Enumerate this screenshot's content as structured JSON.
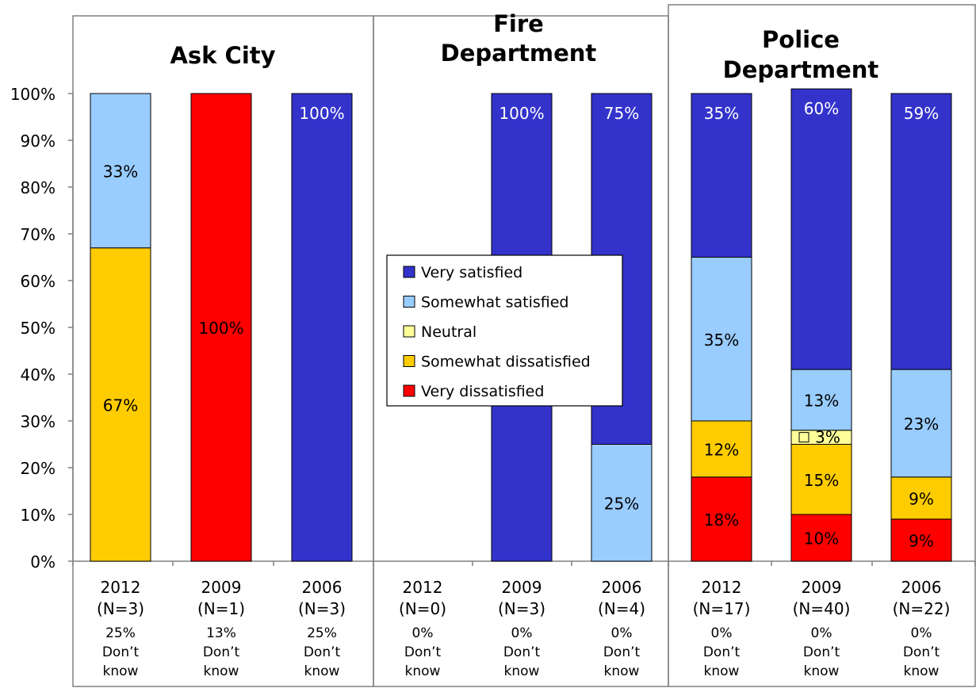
{
  "chart_data": {
    "type": "bar",
    "stacked": true,
    "ylim": [
      0,
      100
    ],
    "y_ticks": [
      "0%",
      "10%",
      "20%",
      "30%",
      "40%",
      "50%",
      "60%",
      "70%",
      "80%",
      "90%",
      "100%"
    ],
    "grid": false,
    "legend_placement": "center",
    "groups": [
      {
        "title_lines": [
          "Ask City"
        ]
      },
      {
        "title_lines": [
          "Fire",
          "Department"
        ]
      },
      {
        "title_lines": [
          "Police",
          "Department"
        ]
      }
    ],
    "series_order": [
      "very_dissatisfied",
      "somewhat_dissatisfied",
      "neutral",
      "somewhat_satisfied",
      "very_satisfied"
    ],
    "legend": [
      {
        "key": "very_satisfied",
        "label": "Very satisfied",
        "color": "#3333cc"
      },
      {
        "key": "somewhat_satisfied",
        "label": "Somewhat satisfied",
        "color": "#99ccff"
      },
      {
        "key": "neutral",
        "label": "Neutral",
        "color": "#ffff99"
      },
      {
        "key": "somewhat_dissatisfied",
        "label": "Somewhat dissatisfied",
        "color": "#ffcc00"
      },
      {
        "key": "very_dissatisfied",
        "label": "Very dissatisfied",
        "color": "#ff0000"
      }
    ],
    "bars": [
      {
        "group": 0,
        "year": "2012",
        "n": "(N=3)",
        "dk": "25%",
        "dk_label": [
          "Don’t",
          "know"
        ],
        "values": {
          "very_dissatisfied": 0,
          "somewhat_dissatisfied": 67,
          "neutral": 0,
          "somewhat_satisfied": 33,
          "very_satisfied": 0
        },
        "labels": {
          "somewhat_dissatisfied": "67%",
          "somewhat_satisfied": "33%"
        }
      },
      {
        "group": 0,
        "year": "2009",
        "n": "(N=1)",
        "dk": "13%",
        "dk_label": [
          "Don’t",
          "know"
        ],
        "values": {
          "very_dissatisfied": 100,
          "somewhat_dissatisfied": 0,
          "neutral": 0,
          "somewhat_satisfied": 0,
          "very_satisfied": 0
        },
        "labels": {
          "very_dissatisfied": "100%"
        }
      },
      {
        "group": 0,
        "year": "2006",
        "n": "(N=3)",
        "dk": "25%",
        "dk_label": [
          "Don’t",
          "know"
        ],
        "values": {
          "very_dissatisfied": 0,
          "somewhat_dissatisfied": 0,
          "neutral": 0,
          "somewhat_satisfied": 0,
          "very_satisfied": 100
        },
        "labels": {
          "very_satisfied": "100%"
        }
      },
      {
        "group": 1,
        "year": "2012",
        "n": "(N=0)",
        "dk": "0%",
        "dk_label": [
          "Don’t",
          "know"
        ],
        "values": {
          "very_dissatisfied": 0,
          "somewhat_dissatisfied": 0,
          "neutral": 0,
          "somewhat_satisfied": 0,
          "very_satisfied": 0
        },
        "labels": {}
      },
      {
        "group": 1,
        "year": "2009",
        "n": "(N=3)",
        "dk": "0%",
        "dk_label": [
          "Don’t",
          "know"
        ],
        "values": {
          "very_dissatisfied": 0,
          "somewhat_dissatisfied": 0,
          "neutral": 0,
          "somewhat_satisfied": 0,
          "very_satisfied": 100
        },
        "labels": {
          "very_satisfied": "100%"
        }
      },
      {
        "group": 1,
        "year": "2006",
        "n": "(N=4)",
        "dk": "0%",
        "dk_label": [
          "Don’t",
          "know"
        ],
        "values": {
          "very_dissatisfied": 0,
          "somewhat_dissatisfied": 0,
          "neutral": 0,
          "somewhat_satisfied": 25,
          "very_satisfied": 75
        },
        "labels": {
          "somewhat_satisfied": "25%",
          "very_satisfied": "75%"
        }
      },
      {
        "group": 2,
        "year": "2012",
        "n": "(N=17)",
        "dk": "0%",
        "dk_label": [
          "Don’t",
          "know"
        ],
        "values": {
          "very_dissatisfied": 18,
          "somewhat_dissatisfied": 12,
          "neutral": 0,
          "somewhat_satisfied": 35,
          "very_satisfied": 35
        },
        "labels": {
          "very_dissatisfied": "18%",
          "somewhat_dissatisfied": "12%",
          "somewhat_satisfied": "35%",
          "very_satisfied": "35%"
        }
      },
      {
        "group": 2,
        "year": "2009",
        "n": "(N=40)",
        "dk": "0%",
        "dk_label": [
          "Don’t",
          "know"
        ],
        "values": {
          "very_dissatisfied": 10,
          "somewhat_dissatisfied": 15,
          "neutral": 3,
          "somewhat_satisfied": 13,
          "very_satisfied": 60
        },
        "labels": {
          "very_dissatisfied": "10%",
          "somewhat_dissatisfied": "15%",
          "neutral": "3%",
          "somewhat_satisfied": "13%",
          "very_satisfied": "60%"
        }
      },
      {
        "group": 2,
        "year": "2006",
        "n": "(N=22)",
        "dk": "0%",
        "dk_label": [
          "Don’t",
          "know"
        ],
        "values": {
          "very_dissatisfied": 9,
          "somewhat_dissatisfied": 9,
          "neutral": 0,
          "somewhat_satisfied": 23,
          "very_satisfied": 59
        },
        "labels": {
          "very_dissatisfied": "9%",
          "somewhat_dissatisfied": "9%",
          "somewhat_satisfied": "23%",
          "very_satisfied": "59%"
        }
      }
    ]
  }
}
